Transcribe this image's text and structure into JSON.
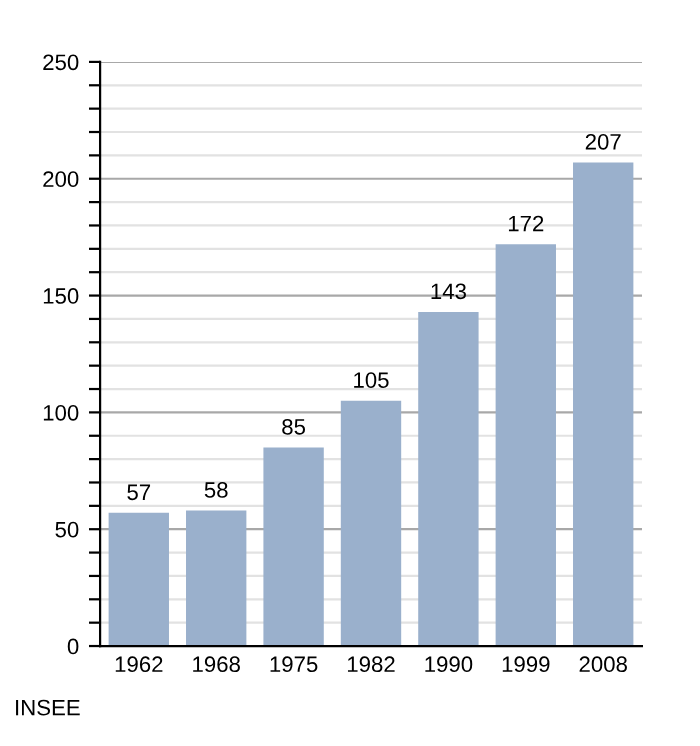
{
  "chart_data": {
    "type": "bar",
    "categories": [
      "1962",
      "1968",
      "1975",
      "1982",
      "1990",
      "1999",
      "2008"
    ],
    "values": [
      57,
      58,
      85,
      105,
      143,
      172,
      207
    ],
    "color": "#9ab0cc",
    "data_labels": true,
    "ylim": [
      0,
      250
    ],
    "yticks": [
      0,
      {
        "value": 10,
        "label": null
      },
      {
        "value": 20,
        "label": null
      },
      {
        "value": 30,
        "label": null
      },
      {
        "value": 40,
        "label": null
      },
      50,
      {
        "value": 60,
        "label": null
      },
      {
        "value": 70,
        "label": null
      },
      {
        "value": 80,
        "label": null
      },
      {
        "value": 90,
        "label": null
      },
      100,
      {
        "value": 110,
        "label": null
      },
      {
        "value": 120,
        "label": null
      },
      {
        "value": 130,
        "label": null
      },
      {
        "value": 140,
        "label": null
      },
      150,
      {
        "value": 160,
        "label": null
      },
      {
        "value": 170,
        "label": null
      },
      {
        "value": 180,
        "label": null
      },
      {
        "value": 190,
        "label": null
      },
      200,
      {
        "value": 210,
        "label": null
      },
      {
        "value": 220,
        "label": null
      },
      {
        "value": 230,
        "label": null
      },
      {
        "value": 240,
        "label": null
      },
      250
    ],
    "grid": "y",
    "annotations": [
      "INSEE"
    ]
  }
}
